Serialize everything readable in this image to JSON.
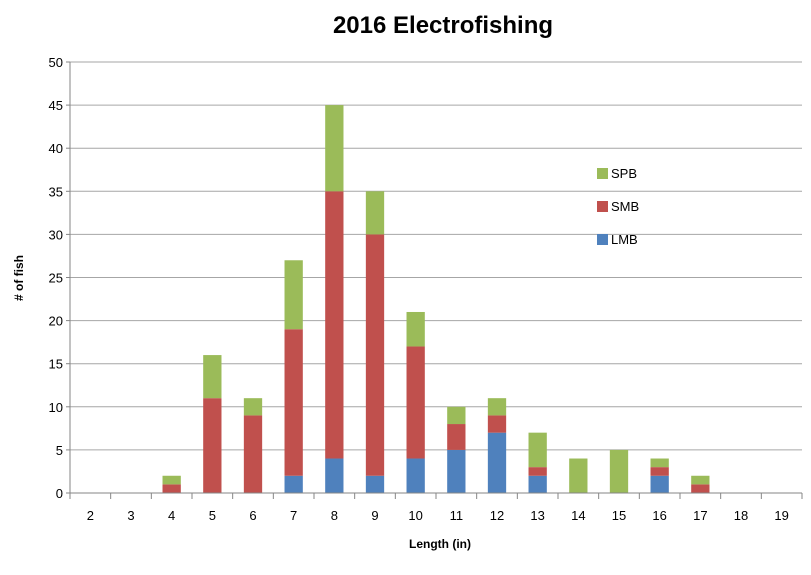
{
  "chart_data": {
    "type": "bar",
    "stacked": true,
    "title": "2016 Electrofishing",
    "xlabel": "Length (in)",
    "ylabel": "# of fish",
    "ylim": [
      0,
      50
    ],
    "yticks": [
      0,
      5,
      10,
      15,
      20,
      25,
      30,
      35,
      40,
      45,
      50
    ],
    "grid": true,
    "legend": "right",
    "categories": [
      "2",
      "3",
      "4",
      "5",
      "6",
      "7",
      "8",
      "9",
      "10",
      "11",
      "12",
      "13",
      "14",
      "15",
      "16",
      "17",
      "18",
      "19"
    ],
    "series": [
      {
        "name": "LMB",
        "color": "#4f81bd",
        "values": [
          0,
          0,
          0,
          0,
          0,
          2,
          4,
          2,
          4,
          5,
          7,
          2,
          0,
          0,
          2,
          0,
          0,
          0
        ]
      },
      {
        "name": "SMB",
        "color": "#c0504d",
        "values": [
          0,
          0,
          1,
          11,
          9,
          17,
          31,
          28,
          13,
          3,
          2,
          1,
          0,
          0,
          1,
          1,
          0,
          0
        ]
      },
      {
        "name": "SPB",
        "color": "#9bbb59",
        "values": [
          0,
          0,
          1,
          5,
          2,
          8,
          10,
          5,
          4,
          2,
          2,
          4,
          4,
          5,
          1,
          1,
          0,
          0
        ]
      }
    ]
  }
}
